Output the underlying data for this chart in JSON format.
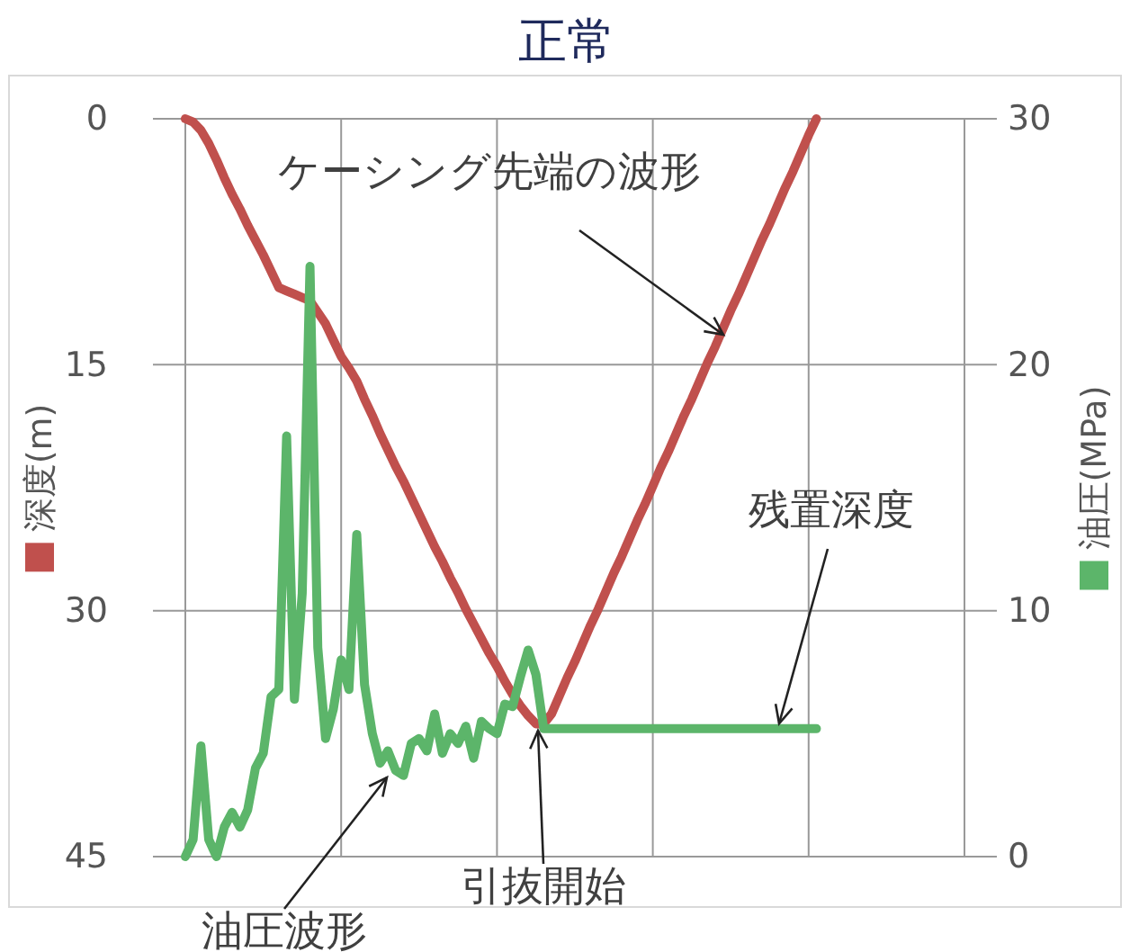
{
  "chart_data": {
    "type": "line",
    "title": "正常",
    "ylabel": "深度(m)",
    "y2label": "油圧(MPa)",
    "categories": [
      null,
      null,
      null,
      null,
      null,
      null,
      null,
      null,
      null,
      null,
      null,
      null,
      null,
      null,
      null,
      null,
      null,
      null,
      null,
      null,
      null,
      null,
      null,
      null,
      null,
      null,
      null,
      null,
      null,
      null,
      null,
      null,
      null,
      null,
      null,
      null,
      null,
      null,
      null,
      null,
      null,
      null,
      null,
      null,
      null,
      null,
      null,
      null,
      null,
      null,
      null,
      null,
      null,
      null,
      null,
      null,
      null,
      null,
      null,
      null,
      null,
      null,
      null,
      null,
      null,
      null,
      null,
      null,
      null,
      null,
      null,
      null,
      null,
      null,
      null,
      null,
      null,
      null,
      null,
      null,
      null,
      null,
      null,
      null,
      null,
      null,
      null,
      null,
      null,
      null,
      null,
      null,
      null,
      null,
      null,
      null,
      null,
      null,
      null,
      null,
      null
    ],
    "ylim": [
      45,
      0
    ],
    "yticks": [
      0,
      15,
      30,
      45
    ],
    "y2lim": [
      0,
      30
    ],
    "y2ticks": [
      0,
      10,
      20,
      30
    ],
    "grid": true,
    "line_style": "solid",
    "series": [
      {
        "color": "#c0504d",
        "values": [
          0,
          0.2,
          0.7,
          1.5,
          2.5,
          3.6,
          4.6,
          5.5,
          6.5,
          7.4,
          8.3,
          9.3,
          10.3,
          10.5,
          10.7,
          10.9,
          11.1,
          11.8,
          12.5,
          13.5,
          14.5,
          15.2,
          16,
          17.1,
          18.1,
          19.2,
          20.2,
          21.2,
          22.1,
          23.1,
          24.1,
          25.1,
          26.1,
          27,
          28,
          28.9,
          29.9,
          30.8,
          31.7,
          32.6,
          33.4,
          34.3,
          35.1,
          35.8,
          36.4,
          36.9,
          36.9,
          36.3,
          35.2,
          34.1,
          33.1,
          32,
          30.9,
          29.9,
          28.8,
          27.7,
          26.7,
          25.6,
          24.5,
          23.5,
          22.4,
          21.3,
          20.3,
          19.2,
          18.1,
          17.1,
          16,
          14.9,
          13.9,
          12.8,
          11.7,
          10.7,
          9.6,
          8.5,
          7.4,
          6.4,
          5.3,
          4.2,
          3.2,
          2.1,
          1,
          0,
          null,
          null,
          null,
          null,
          null,
          null,
          null,
          null,
          null,
          null,
          null,
          null,
          null,
          null,
          null,
          null,
          null,
          null,
          null
        ]
      },
      {
        "color": "#5cb56a",
        "axis": "y2",
        "values": [
          0,
          0.7,
          4.5,
          0.7,
          0,
          1.2,
          1.8,
          1.2,
          1.9,
          3.6,
          4.2,
          6.5,
          6.8,
          17.1,
          6.4,
          10.7,
          24,
          8.5,
          4.8,
          6,
          8,
          6.8,
          13.1,
          7,
          5,
          3.8,
          4.3,
          3.5,
          3.3,
          4.6,
          4.8,
          4.3,
          5.8,
          4.2,
          5,
          4.6,
          5.3,
          4,
          5.5,
          5.2,
          5,
          6.2,
          6.1,
          7.3,
          8.4,
          7.4,
          5.2,
          5.2,
          5.2,
          5.2,
          5.2,
          5.2,
          5.2,
          5.2,
          5.2,
          5.2,
          5.2,
          5.2,
          5.2,
          5.2,
          5.2,
          5.2,
          5.2,
          5.2,
          5.2,
          5.2,
          5.2,
          5.2,
          5.2,
          5.2,
          5.2,
          5.2,
          5.2,
          5.2,
          5.2,
          5.2,
          5.2,
          5.2,
          5.2,
          5.2,
          5.2,
          5.2,
          null,
          null,
          null,
          null,
          null,
          null,
          null,
          null,
          null,
          null,
          null,
          null,
          null,
          null,
          null,
          null,
          null,
          null,
          null
        ]
      }
    ],
    "annotations": [
      "ケーシング先端の波形",
      "残置深度",
      "引抜開始",
      "油圧波形"
    ]
  }
}
